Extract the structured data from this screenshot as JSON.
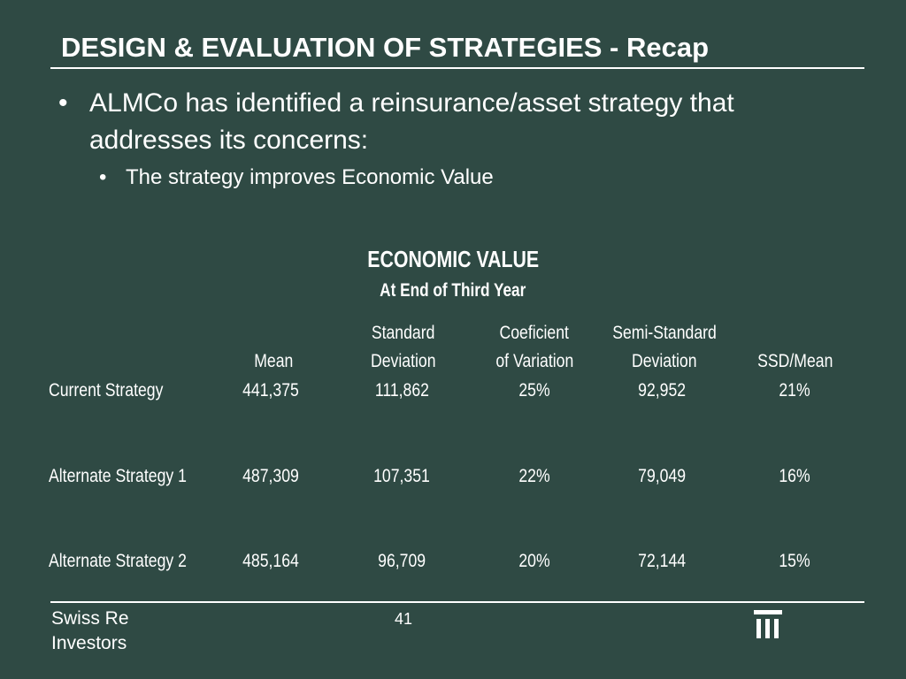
{
  "slide": {
    "title": "DESIGN & EVALUATION OF STRATEGIES - Recap",
    "bullet1": "ALMCo has identified a reinsurance/asset strategy that addresses its concerns:",
    "bullet2": "The strategy improves Economic Value",
    "bullet_symbol": "•"
  },
  "table": {
    "title": "ECONOMIC VALUE",
    "subtitle": "At End of Third Year",
    "headers": [
      {
        "line1": "",
        "line2": "Mean"
      },
      {
        "line1": "Standard",
        "line2": "Deviation"
      },
      {
        "line1": "Coeficient",
        "line2": "of Variation"
      },
      {
        "line1": "Semi-Standard",
        "line2": "Deviation"
      },
      {
        "line1": "",
        "line2": "SSD/Mean"
      }
    ],
    "rows": [
      {
        "label": "Current Strategy",
        "values": [
          "441,375",
          "111,862",
          "25%",
          "92,952",
          "21%"
        ]
      },
      {
        "label": "Alternate Strategy 1",
        "values": [
          "487,309",
          "107,351",
          "22%",
          "79,049",
          "16%"
        ]
      },
      {
        "label": "Alternate Strategy 2",
        "values": [
          "485,164",
          "96,709",
          "20%",
          "72,144",
          "15%"
        ]
      }
    ]
  },
  "footer": {
    "company_line1": "Swiss Re",
    "company_line2": "Investors",
    "page_number": "41",
    "logo_icon": "swiss-re-logo-icon"
  },
  "colors": {
    "background": "#2f4a44",
    "text": "#ffffff"
  }
}
